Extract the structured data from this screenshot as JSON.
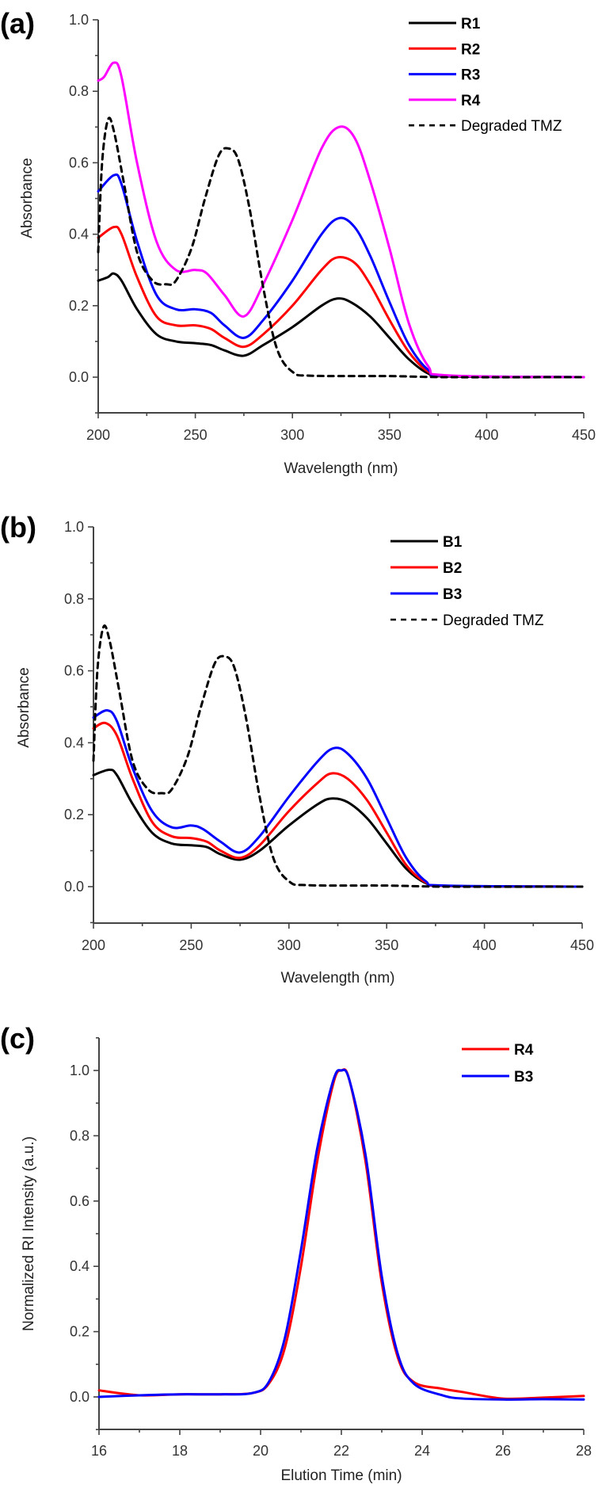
{
  "chart_data": [
    {
      "panel_label": "(a)",
      "type": "line",
      "title": "",
      "xlabel": "Wavelength (nm)",
      "ylabel": "Absorbance",
      "xlim": [
        200,
        450
      ],
      "ylim": [
        -0.1,
        1.0
      ],
      "x_ticks": [
        "200",
        "250",
        "300",
        "350",
        "400",
        "450"
      ],
      "y_ticks": [
        "0.0",
        "0.2",
        "0.4",
        "0.6",
        "0.8",
        "1.0"
      ],
      "grid": false,
      "legend_position": "top-right",
      "series": [
        {
          "name": "R1",
          "color": "#000000",
          "dash": false,
          "bold": true,
          "x": [
            200,
            205,
            208,
            212,
            220,
            230,
            240,
            250,
            258,
            265,
            275,
            285,
            300,
            315,
            323,
            330,
            340,
            350,
            360,
            370,
            380,
            450
          ],
          "y": [
            0.27,
            0.28,
            0.29,
            0.27,
            0.19,
            0.12,
            0.1,
            0.095,
            0.09,
            0.075,
            0.06,
            0.09,
            0.14,
            0.2,
            0.22,
            0.21,
            0.17,
            0.11,
            0.05,
            0.01,
            0.002,
            0
          ]
        },
        {
          "name": "R2",
          "color": "#ff0000",
          "dash": false,
          "bold": true,
          "x": [
            200,
            208,
            212,
            220,
            230,
            240,
            250,
            258,
            265,
            275,
            285,
            300,
            315,
            323,
            332,
            340,
            350,
            360,
            370,
            380,
            450
          ],
          "y": [
            0.39,
            0.42,
            0.4,
            0.28,
            0.17,
            0.145,
            0.145,
            0.135,
            0.11,
            0.085,
            0.12,
            0.2,
            0.3,
            0.335,
            0.32,
            0.26,
            0.16,
            0.07,
            0.015,
            0.003,
            0
          ]
        },
        {
          "name": "R3",
          "color": "#0000ff",
          "dash": false,
          "bold": true,
          "x": [
            200,
            208,
            212,
            220,
            230,
            240,
            250,
            258,
            265,
            275,
            285,
            300,
            315,
            324,
            332,
            340,
            350,
            360,
            370,
            380,
            450
          ],
          "y": [
            0.52,
            0.565,
            0.54,
            0.38,
            0.23,
            0.19,
            0.19,
            0.18,
            0.145,
            0.11,
            0.16,
            0.27,
            0.4,
            0.445,
            0.42,
            0.34,
            0.21,
            0.09,
            0.02,
            0.004,
            0
          ]
        },
        {
          "name": "R4",
          "color": "#ff00ff",
          "dash": false,
          "bold": true,
          "x": [
            200,
            203,
            208,
            212,
            220,
            230,
            240,
            250,
            256,
            265,
            275,
            285,
            300,
            315,
            324,
            332,
            340,
            350,
            360,
            370,
            380,
            450
          ],
          "y": [
            0.83,
            0.84,
            0.88,
            0.84,
            0.6,
            0.38,
            0.3,
            0.3,
            0.29,
            0.23,
            0.17,
            0.26,
            0.44,
            0.64,
            0.7,
            0.67,
            0.55,
            0.36,
            0.15,
            0.03,
            0.005,
            0
          ]
        },
        {
          "name": "Degraded TMZ",
          "color": "#000000",
          "dash": true,
          "bold": false,
          "x": [
            200,
            202,
            205,
            208,
            213,
            220,
            228,
            235,
            240,
            248,
            255,
            262,
            267,
            272,
            278,
            285,
            292,
            300,
            310,
            350,
            380,
            450
          ],
          "y": [
            0.35,
            0.6,
            0.72,
            0.69,
            0.55,
            0.35,
            0.27,
            0.26,
            0.27,
            0.36,
            0.5,
            0.62,
            0.64,
            0.61,
            0.47,
            0.25,
            0.08,
            0.015,
            0.004,
            0.003,
            0,
            0
          ]
        }
      ]
    },
    {
      "panel_label": "(b)",
      "type": "line",
      "title": "",
      "xlabel": "Wavelength (nm)",
      "ylabel": "Absorbance",
      "xlim": [
        200,
        450
      ],
      "ylim": [
        -0.1,
        1.0
      ],
      "x_ticks": [
        "200",
        "250",
        "300",
        "350",
        "400",
        "450"
      ],
      "y_ticks": [
        "0.0",
        "0.2",
        "0.4",
        "0.6",
        "0.8",
        "1.0"
      ],
      "grid": false,
      "legend_position": "top-right",
      "series": [
        {
          "name": "B1",
          "color": "#000000",
          "dash": false,
          "bold": true,
          "x": [
            200,
            208,
            212,
            220,
            230,
            240,
            250,
            258,
            265,
            275,
            285,
            300,
            315,
            322,
            330,
            340,
            350,
            360,
            370,
            380,
            450
          ],
          "y": [
            0.31,
            0.325,
            0.31,
            0.23,
            0.15,
            0.12,
            0.115,
            0.11,
            0.09,
            0.075,
            0.1,
            0.17,
            0.23,
            0.245,
            0.235,
            0.19,
            0.12,
            0.05,
            0.01,
            0.002,
            0
          ]
        },
        {
          "name": "B2",
          "color": "#ff0000",
          "dash": false,
          "bold": true,
          "x": [
            200,
            206,
            212,
            220,
            230,
            240,
            250,
            258,
            265,
            275,
            285,
            300,
            315,
            322,
            330,
            340,
            350,
            360,
            370,
            380,
            450
          ],
          "y": [
            0.44,
            0.455,
            0.42,
            0.3,
            0.18,
            0.14,
            0.135,
            0.125,
            0.1,
            0.08,
            0.115,
            0.21,
            0.29,
            0.315,
            0.3,
            0.24,
            0.15,
            0.06,
            0.012,
            0.002,
            0
          ]
        },
        {
          "name": "B3",
          "color": "#0000ff",
          "dash": false,
          "bold": true,
          "x": [
            200,
            207,
            212,
            220,
            230,
            240,
            250,
            256,
            265,
            275,
            285,
            300,
            315,
            323,
            330,
            340,
            350,
            360,
            370,
            380,
            450
          ],
          "y": [
            0.47,
            0.49,
            0.46,
            0.33,
            0.21,
            0.165,
            0.17,
            0.16,
            0.125,
            0.095,
            0.14,
            0.25,
            0.35,
            0.385,
            0.37,
            0.3,
            0.19,
            0.08,
            0.015,
            0.003,
            0
          ]
        },
        {
          "name": "Degraded TMZ",
          "color": "#000000",
          "dash": true,
          "bold": false,
          "x": [
            200,
            202,
            205,
            208,
            213,
            220,
            228,
            235,
            240,
            248,
            255,
            262,
            267,
            272,
            278,
            285,
            292,
            300,
            310,
            350,
            380,
            450
          ],
          "y": [
            0.35,
            0.6,
            0.72,
            0.69,
            0.55,
            0.35,
            0.27,
            0.26,
            0.27,
            0.36,
            0.5,
            0.62,
            0.64,
            0.61,
            0.47,
            0.25,
            0.08,
            0.015,
            0.004,
            0.003,
            0,
            0
          ]
        }
      ]
    },
    {
      "panel_label": "(c)",
      "type": "line",
      "title": "",
      "xlabel": "Elution Time (min)",
      "ylabel": "Normalized RI Intensity (a.u.)",
      "xlim": [
        16,
        28
      ],
      "ylim": [
        -0.1,
        1.1
      ],
      "x_ticks": [
        "16",
        "18",
        "20",
        "22",
        "24",
        "26",
        "28"
      ],
      "y_ticks": [
        "0.0",
        "0.2",
        "0.4",
        "0.6",
        "0.8",
        "1.0"
      ],
      "grid": false,
      "legend_position": "top-right",
      "series": [
        {
          "name": "R4",
          "color": "#ff0000",
          "dash": false,
          "bold": true,
          "x": [
            16,
            17,
            18,
            19,
            19.8,
            20.2,
            20.6,
            21,
            21.4,
            21.8,
            22,
            22.2,
            22.6,
            23,
            23.4,
            23.8,
            24.5,
            25,
            26,
            27,
            28
          ],
          "y": [
            0.02,
            0.005,
            0.008,
            0.008,
            0.012,
            0.04,
            0.15,
            0.4,
            0.72,
            0.96,
            1.0,
            0.97,
            0.72,
            0.35,
            0.12,
            0.045,
            0.025,
            0.015,
            -0.005,
            -0.002,
            0.003
          ]
        },
        {
          "name": "B3",
          "color": "#0000ff",
          "dash": false,
          "bold": true,
          "x": [
            16,
            17,
            18,
            19,
            19.8,
            20.2,
            20.6,
            21,
            21.4,
            21.8,
            22,
            22.2,
            22.6,
            23,
            23.4,
            23.8,
            24.5,
            25,
            26,
            27,
            28
          ],
          "y": [
            0.0,
            0.005,
            0.008,
            0.008,
            0.012,
            0.045,
            0.18,
            0.45,
            0.76,
            0.97,
            1.0,
            0.97,
            0.74,
            0.37,
            0.13,
            0.04,
            0.005,
            -0.005,
            -0.008,
            -0.007,
            -0.008
          ]
        }
      ]
    }
  ]
}
